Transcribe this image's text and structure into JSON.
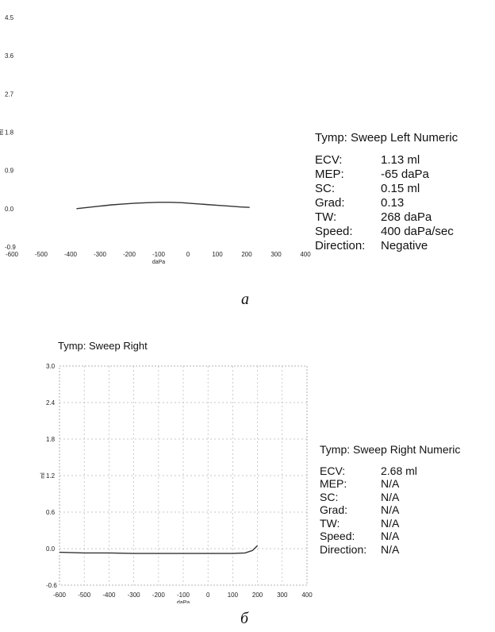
{
  "chart_data": [
    {
      "type": "line",
      "title": "",
      "xlabel": "daPa",
      "ylabel": "ml",
      "xlim": [
        -600,
        400
      ],
      "ylim": [
        -0.9,
        4.5
      ],
      "xticks": [
        "-600",
        "-500",
        "-400",
        "-300",
        "-200",
        "-100",
        "0",
        "100",
        "200",
        "300",
        "400"
      ],
      "yticks": [
        "-0.9",
        "0.0",
        "0.9",
        "1.8",
        "2.7",
        "3.6",
        "4.5"
      ],
      "grid": false,
      "series": [
        {
          "x": [
            -380,
            -340,
            -300,
            -260,
            -220,
            -180,
            -140,
            -100,
            -60,
            -20,
            20,
            60,
            100,
            140,
            180,
            210
          ],
          "y": [
            0.0,
            0.03,
            0.06,
            0.09,
            0.11,
            0.13,
            0.14,
            0.15,
            0.15,
            0.14,
            0.12,
            0.1,
            0.08,
            0.06,
            0.04,
            0.03
          ]
        }
      ]
    },
    {
      "type": "line",
      "title": "Tymp: Sweep Right",
      "xlabel": "daPa",
      "ylabel": "ml",
      "xlim": [
        -600,
        400
      ],
      "ylim": [
        -0.6,
        3.0
      ],
      "xticks": [
        "-600",
        "-500",
        "-400",
        "-300",
        "-200",
        "-100",
        "0",
        "100",
        "200",
        "300",
        "400"
      ],
      "yticks": [
        "-0.6",
        "0.0",
        "0.6",
        "1.2",
        "1.8",
        "2.4",
        "3.0"
      ],
      "grid": true,
      "series": [
        {
          "x": [
            -600,
            -500,
            -400,
            -300,
            -200,
            -100,
            0,
            100,
            150,
            180,
            200
          ],
          "y": [
            -0.06,
            -0.07,
            -0.07,
            -0.08,
            -0.08,
            -0.08,
            -0.08,
            -0.08,
            -0.07,
            -0.03,
            0.05
          ]
        }
      ]
    }
  ],
  "panel_a": {
    "numeric": {
      "title": "Tymp: Sweep Left Numeric",
      "rows": [
        {
          "label": "ECV:",
          "value": "1.13 ml"
        },
        {
          "label": "MEP:",
          "value": "-65 daPa"
        },
        {
          "label": "SC:",
          "value": "0.15 ml"
        },
        {
          "label": "Grad:",
          "value": "0.13"
        },
        {
          "label": "TW:",
          "value": "268 daPa"
        },
        {
          "label": "Speed:",
          "value": "400 daPa/sec"
        },
        {
          "label": "Direction:",
          "value": "Negative"
        }
      ]
    },
    "caption": "a"
  },
  "panel_b": {
    "numeric": {
      "title": "Tymp: Sweep Right Numeric",
      "rows": [
        {
          "label": "ECV:",
          "value": "2.68 ml"
        },
        {
          "label": "MEP:",
          "value": "N/A"
        },
        {
          "label": "SC:",
          "value": "N/A"
        },
        {
          "label": "Grad:",
          "value": "N/A"
        },
        {
          "label": "TW:",
          "value": "N/A"
        },
        {
          "label": "Speed:",
          "value": "N/A"
        },
        {
          "label": "Direction:",
          "value": "N/A"
        }
      ]
    },
    "caption": "б"
  }
}
